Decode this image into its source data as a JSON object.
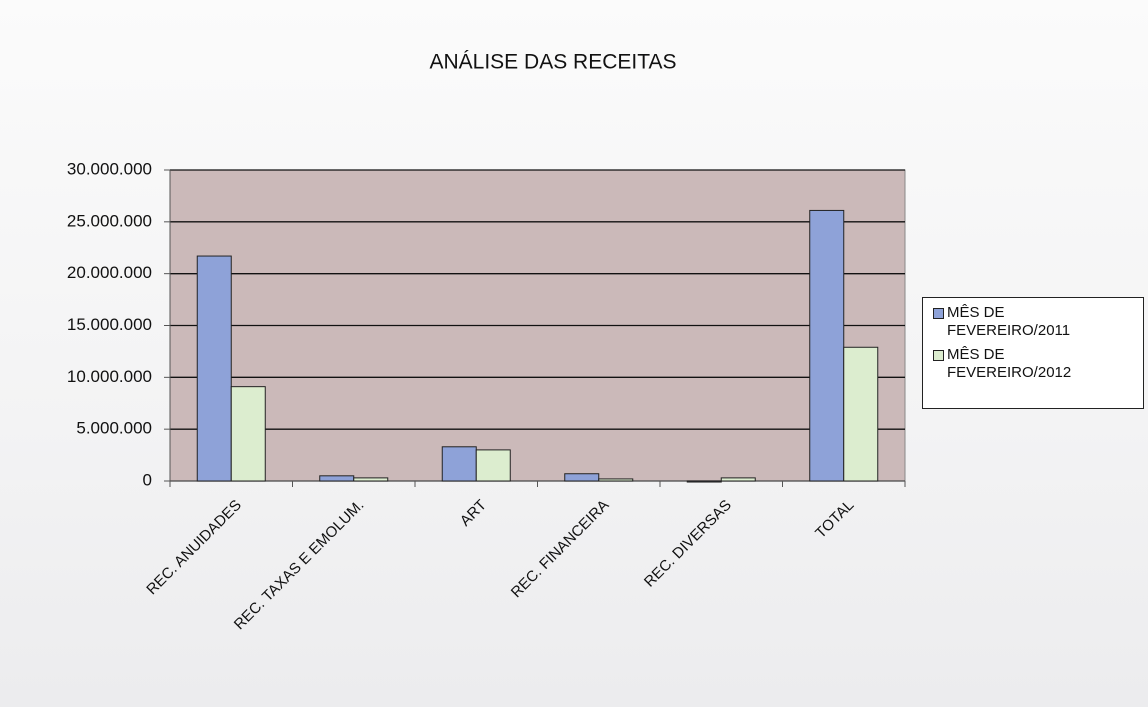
{
  "chart_data": {
    "type": "bar",
    "title": "ANÁLISE DAS RECEITAS",
    "categories": [
      "REC. ANUIDADES",
      "REC. TAXAS E EMOLUM.",
      "ART",
      "REC. FINANCEIRA",
      "REC. DIVERSAS",
      "TOTAL"
    ],
    "series": [
      {
        "name": "MÊS DE FEVEREIRO/2011",
        "color": "#8ea2d8",
        "values": [
          21700000,
          500000,
          3300000,
          700000,
          -100000,
          26100000
        ]
      },
      {
        "name": "MÊS DE FEVEREIRO/2012",
        "color": "#dcedcf",
        "values": [
          9100000,
          300000,
          3000000,
          200000,
          300000,
          12900000
        ]
      }
    ],
    "ylim": [
      0,
      30000000
    ],
    "yticks": [
      0,
      {
        "value": 5000000,
        "label": "5.000.000"
      },
      {
        "value": 10000000,
        "label": "10.000.000"
      },
      {
        "value": 15000000,
        "label": "15.000.000"
      },
      {
        "value": 20000000,
        "label": "20.000.000"
      },
      {
        "value": 25000000,
        "label": "25.000.000"
      },
      {
        "value": 30000000,
        "label": "30.000.000"
      }
    ],
    "grid": true,
    "legend": "right"
  }
}
